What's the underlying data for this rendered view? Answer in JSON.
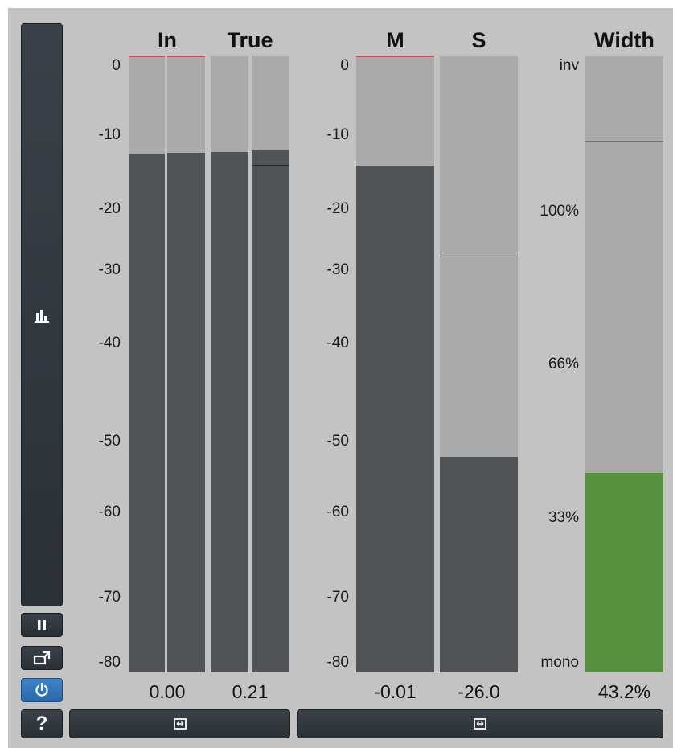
{
  "meters": {
    "in": {
      "label": "In",
      "readout": "0.00",
      "channels": [
        {
          "level_db": -12.6
        },
        {
          "level_db": -12.5
        }
      ]
    },
    "true": {
      "label": "True",
      "readout": "0.21",
      "channels": [
        {
          "level_db": -12.4
        },
        {
          "level_db": -12.2,
          "hold_db": -14.1
        }
      ]
    },
    "m": {
      "label": "M",
      "readout": "-0.01",
      "level_db": -14.2
    },
    "s": {
      "label": "S",
      "readout": "-26.0",
      "level_db": -52.0,
      "hold_db": -26.0
    },
    "width": {
      "label": "Width",
      "readout": "43.2%",
      "level_percent": 43.2,
      "hold_percent": 115
    }
  },
  "db_scale": [
    "0",
    "-10",
    "-20",
    "-30",
    "-40",
    "-50",
    "-60",
    "-70",
    "-80"
  ],
  "width_scale": [
    "inv",
    "100%",
    "66%",
    "33%",
    "mono"
  ],
  "sidebar": {
    "meter_icon": "bar-chart-icon",
    "pause_icon": "pause-icon",
    "popout_icon": "popout-icon",
    "power_icon": "power-icon",
    "help_label": "?"
  },
  "bottom_buttons": [
    {
      "icon": "resize-horizontal-icon"
    },
    {
      "icon": "resize-horizontal-icon"
    }
  ],
  "colors": {
    "accent": "#56903f",
    "power": "#2f74b8",
    "peak": "#c05050"
  }
}
